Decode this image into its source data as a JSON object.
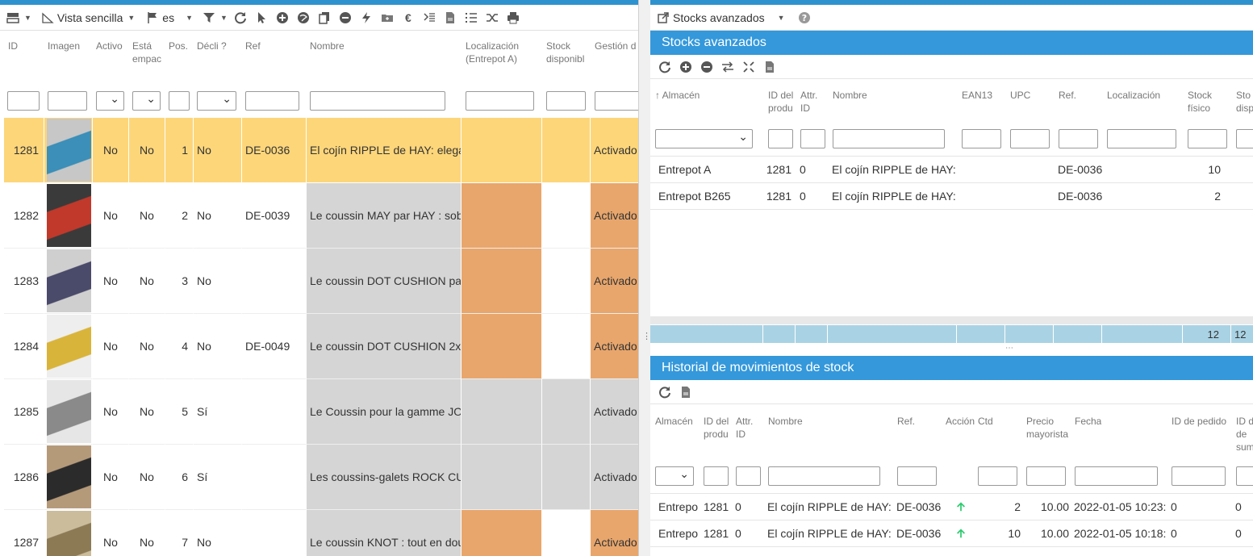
{
  "left": {
    "toolbar": {
      "view_label": "Vista sencilla",
      "lang_label": "es"
    },
    "headers": {
      "id": "ID",
      "imagen": "Imagen",
      "activo": "Activo",
      "esta": "Está\nempac",
      "pos": "Pos.",
      "decli": "Décli ?",
      "ref": "Ref",
      "nombre": "Nombre",
      "localizacion": "Localización\n(Entrepot A)",
      "stock": "Stock\ndisponibl",
      "gestion": "Gestión d"
    },
    "rows": [
      {
        "id": "1281",
        "activo": "No",
        "esta": "No",
        "pos": "1",
        "decli": "No",
        "ref": "DE-0036",
        "nombre": "El cojín RIPPLE de HAY: elega",
        "gestion": "Activado"
      },
      {
        "id": "1282",
        "activo": "No",
        "esta": "No",
        "pos": "2",
        "decli": "No",
        "ref": "DE-0039",
        "nombre": "Le coussin MAY par HAY : sob",
        "gestion": "Activado"
      },
      {
        "id": "1283",
        "activo": "No",
        "esta": "No",
        "pos": "3",
        "decli": "No",
        "ref": "",
        "nombre": "Le coussin DOT CUSHION pa",
        "gestion": "Activado"
      },
      {
        "id": "1284",
        "activo": "No",
        "esta": "No",
        "pos": "4",
        "decli": "No",
        "ref": "DE-0049",
        "nombre": "Le coussin DOT CUSHION 2x",
        "gestion": "Activado"
      },
      {
        "id": "1285",
        "activo": "No",
        "esta": "No",
        "pos": "5",
        "decli": "Sí",
        "ref": "",
        "nombre": "Le Coussin pour la gamme JO",
        "gestion": "Activado"
      },
      {
        "id": "1286",
        "activo": "No",
        "esta": "No",
        "pos": "6",
        "decli": "Sí",
        "ref": "",
        "nombre": "Les coussins-galets ROCK CU",
        "gestion": "Activado"
      },
      {
        "id": "1287",
        "activo": "No",
        "esta": "No",
        "pos": "7",
        "decli": "No",
        "ref": "",
        "nombre": "Le coussin KNOT : tout en dou",
        "gestion": "Activado"
      }
    ],
    "colors": {
      "selected": "#fdd67a",
      "orange": "#e8a66c",
      "grey": "#d5d5d5"
    }
  },
  "right": {
    "toolbar": {
      "label": "Stocks avanzados"
    },
    "stocks": {
      "title": "Stocks avanzados",
      "headers": {
        "almacen": "Almacén",
        "idprod": "ID del\nprodu",
        "attr": "Attr.\nID",
        "nombre": "Nombre",
        "ean": "EAN13",
        "upc": "UPC",
        "ref": "Ref.",
        "loc": "Localización",
        "fisico": "Stock\nfísico",
        "disp": "Sto\ndisp"
      },
      "rows": [
        {
          "almacen": "Entrepot A",
          "idprod": "1281",
          "attr": "0",
          "nombre": "El cojín RIPPLE de HAY:",
          "ref": "DE-0036",
          "fisico": "10"
        },
        {
          "almacen": "Entrepot B265",
          "idprod": "1281",
          "attr": "0",
          "nombre": "El cojín RIPPLE de HAY:",
          "ref": "DE-0036",
          "fisico": "2"
        }
      ],
      "totals": {
        "fisico": "12",
        "disp": "12"
      }
    },
    "historial": {
      "title": "Historial de movimientos de stock",
      "headers": {
        "almacen": "Almacén",
        "idprod": "ID del\nprodu",
        "attr": "Attr.\nID",
        "nombre": "Nombre",
        "ref": "Ref.",
        "accion": "Acción",
        "ctd": "Ctd",
        "precio": "Precio\nmayorista",
        "fecha": "Fecha",
        "pedido": "ID de pedido",
        "sum": "ID d\nde\nsum"
      },
      "rows": [
        {
          "almacen": "Entrepo",
          "idprod": "1281",
          "attr": "0",
          "nombre": "El cojín RIPPLE de HAY:",
          "ref": "DE-0036",
          "ctd": "2",
          "precio": "10.00",
          "fecha": "2022-01-05 10:23:",
          "pedido": "0",
          "sum": "0"
        },
        {
          "almacen": "Entrepo",
          "idprod": "1281",
          "attr": "0",
          "nombre": "El cojín RIPPLE de HAY:",
          "ref": "DE-0036",
          "ctd": "10",
          "precio": "10.00",
          "fecha": "2022-01-05 10:18:",
          "pedido": "0",
          "sum": "0"
        }
      ]
    }
  }
}
